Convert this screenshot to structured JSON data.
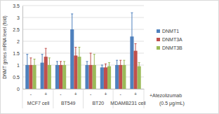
{
  "chart_data": {
    "type": "bar",
    "y_label": "DNMT genes mRNA level (fold)",
    "categories": [
      "-",
      "+",
      "-",
      "+",
      "-",
      "+",
      "-",
      "+"
    ],
    "group_labels": [
      "MCF7 cell",
      "BT549",
      "BT20",
      "MDAMB231 cell"
    ],
    "annotations": [
      "+Atezolizumab",
      "(0.5 μg/mL)"
    ],
    "series": [
      {
        "name": "DNMT1",
        "color": "#4f81bd",
        "values": [
          1,
          1.1,
          1,
          2.5,
          1,
          0.9,
          1,
          2.2
        ],
        "errors": [
          0.45,
          0.35,
          0.15,
          0.65,
          0.15,
          0.1,
          0.2,
          1.0
        ]
      },
      {
        "name": "DNMT3A",
        "color": "#c0504d",
        "values": [
          1,
          1.35,
          1,
          1.4,
          1,
          0.9,
          1,
          1.6
        ],
        "errors": [
          0.3,
          0.35,
          0.15,
          0.35,
          0.5,
          0.15,
          0.2,
          0.3
        ]
      },
      {
        "name": "DNMT3B",
        "color": "#9bbb59",
        "values": [
          1,
          1.0,
          1,
          1.35,
          1,
          0.95,
          1,
          0.95
        ],
        "errors": [
          0.25,
          0.3,
          0.15,
          0.4,
          0.45,
          0.15,
          0.2,
          0.15
        ]
      }
    ],
    "ylim": [
      0,
      3.5
    ],
    "yticks": [
      0,
      0.5,
      1,
      1.5,
      2,
      2.5,
      3,
      3.5
    ],
    "grid": true,
    "legend": "right"
  }
}
